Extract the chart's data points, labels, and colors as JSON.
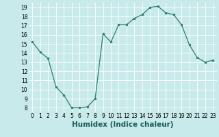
{
  "x": [
    0,
    1,
    2,
    3,
    4,
    5,
    6,
    7,
    8,
    9,
    10,
    11,
    12,
    13,
    14,
    15,
    16,
    17,
    18,
    19,
    20,
    21,
    22,
    23
  ],
  "y": [
    15.2,
    14.1,
    13.4,
    10.3,
    9.4,
    8.0,
    8.0,
    8.1,
    9.0,
    16.1,
    15.2,
    17.1,
    17.1,
    17.8,
    18.2,
    19.0,
    19.1,
    18.4,
    18.2,
    17.1,
    14.9,
    13.5,
    13.0,
    13.2
  ],
  "line_color": "#2e7d6e",
  "marker": "o",
  "marker_size": 2.0,
  "bg_color": "#c8eaea",
  "grid_color": "#ffffff",
  "xlabel": "Humidex (Indice chaleur)",
  "ylim": [
    7.5,
    19.5
  ],
  "xlim": [
    -0.5,
    23.5
  ],
  "yticks": [
    8,
    9,
    10,
    11,
    12,
    13,
    14,
    15,
    16,
    17,
    18,
    19
  ],
  "xticks": [
    0,
    1,
    2,
    3,
    4,
    5,
    6,
    7,
    8,
    9,
    10,
    11,
    12,
    13,
    14,
    15,
    16,
    17,
    18,
    19,
    20,
    21,
    22,
    23
  ],
  "tick_fontsize": 5.5,
  "xlabel_fontsize": 7.5,
  "line_width": 0.9
}
